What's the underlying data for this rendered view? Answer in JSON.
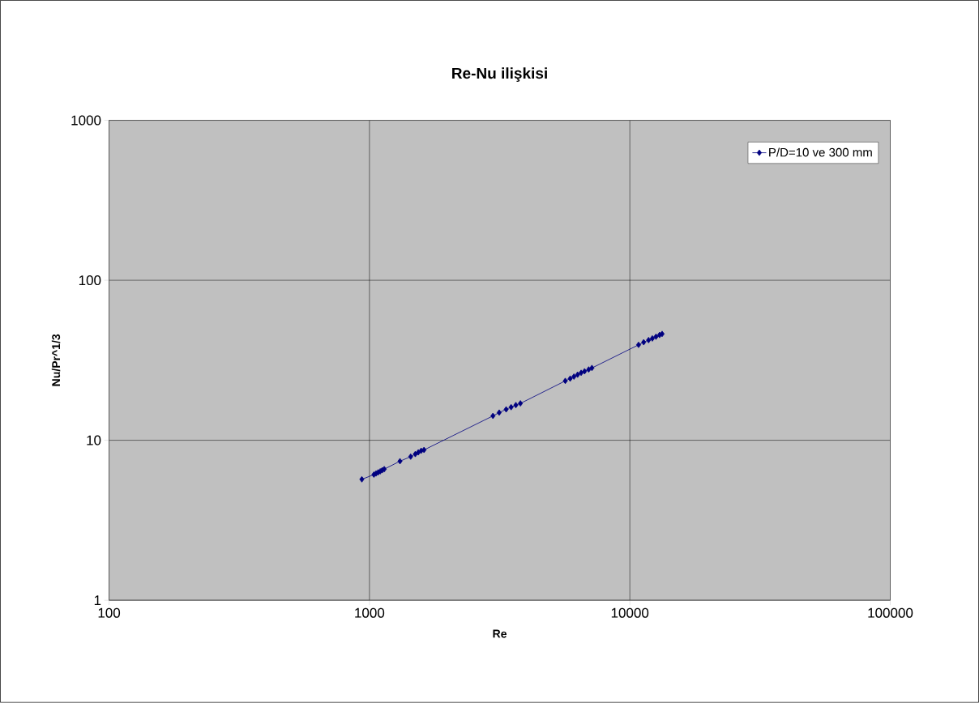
{
  "chart_data": {
    "type": "line",
    "title": "Re-Nu ilişkisi",
    "xlabel": "Re",
    "ylabel": "Nu/Pr^1/3",
    "log": "xy",
    "grid": true,
    "legend": "top right",
    "marker": "diamond",
    "line_style": "solid",
    "xlim": [
      100,
      100000
    ],
    "ylim": [
      1,
      1000
    ],
    "xticks": [
      100,
      1000,
      10000,
      100000
    ],
    "yticks": [
      1,
      10,
      100,
      1000
    ],
    "series": [
      {
        "name": "P/D=10 ve 300 mm",
        "color": "#000080",
        "x": [
          935,
          1040,
          1060,
          1080,
          1100,
          1120,
          1140,
          1310,
          1440,
          1500,
          1540,
          1580,
          1620,
          2980,
          3150,
          3350,
          3500,
          3650,
          3800,
          5650,
          5900,
          6100,
          6300,
          6500,
          6700,
          6950,
          7150,
          10800,
          11300,
          11800,
          12200,
          12600,
          13000,
          13300
        ],
        "values": [
          5.7,
          6.1,
          6.2,
          6.3,
          6.4,
          6.5,
          6.6,
          7.4,
          7.9,
          8.2,
          8.4,
          8.6,
          8.7,
          14.2,
          14.9,
          15.6,
          16.1,
          16.6,
          17.0,
          23.5,
          24.3,
          25.0,
          25.7,
          26.4,
          27.0,
          27.7,
          28.3,
          39.5,
          41.0,
          42.3,
          43.3,
          44.4,
          45.5,
          46.2
        ]
      }
    ]
  }
}
